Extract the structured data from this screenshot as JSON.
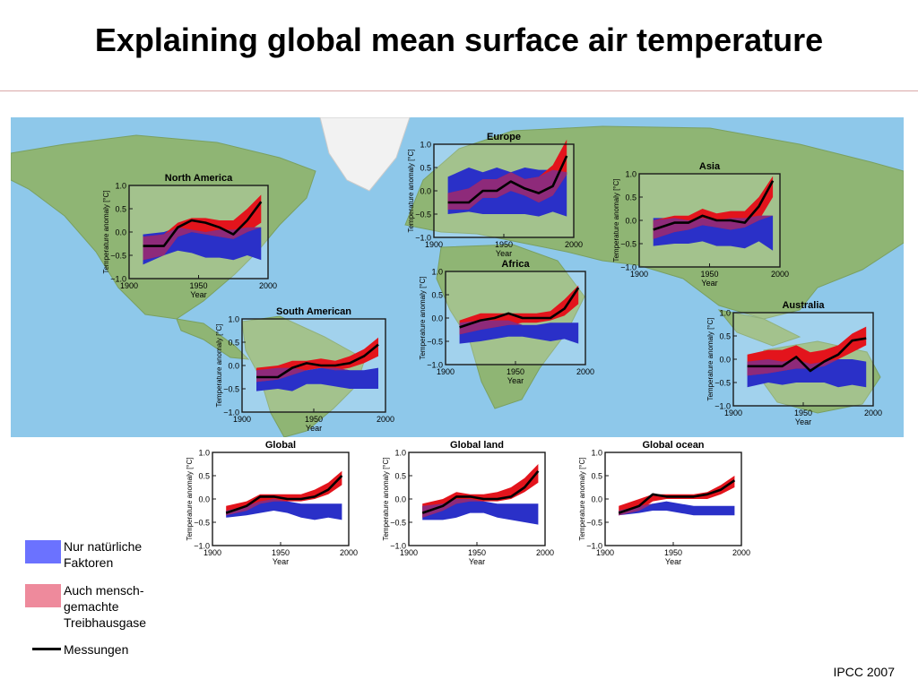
{
  "slide": {
    "title": "Explaining global mean surface air temperature",
    "source": "IPCC 2007"
  },
  "legend": {
    "natural": {
      "line1": "Nur natürliche",
      "line2": "Faktoren",
      "color": "#6b72ff"
    },
    "anthro": {
      "line1": "Auch mensch-",
      "line2": "gemachte",
      "line3": "Treibhausgase",
      "color": "#ee8a9c"
    },
    "observed": {
      "label": "Messungen",
      "color": "#000000"
    }
  },
  "colors": {
    "natural_band": "#2a30c8",
    "anthro_band": "#e3141c",
    "overlap": "#8e2a7a",
    "ocean": "#8ec8ea",
    "land": "#8fb574",
    "ice": "#f2f2f2"
  },
  "chart_data": [
    {
      "type": "area",
      "title": "North America",
      "ylabel": "Temperature anomaly [°C]",
      "xlabel": "Year",
      "xlim": [
        1900,
        2000
      ],
      "ylim": [
        -1.0,
        1.0
      ],
      "xticks": [
        "1900",
        "1950",
        "2000"
      ],
      "yticks": [
        "−1.0",
        "−0.5",
        "0.0",
        "0.5",
        "1.0"
      ],
      "x": [
        1910,
        1925,
        1935,
        1945,
        1955,
        1965,
        1975,
        1985,
        1995
      ],
      "series": [
        {
          "values": [
            -0.3,
            -0.3,
            0.1,
            0.25,
            0.2,
            0.1,
            -0.05,
            0.25,
            0.65
          ]
        },
        {
          "lower": [
            -0.7,
            -0.5,
            -0.4,
            -0.45,
            -0.55,
            -0.55,
            -0.6,
            -0.5,
            -0.6
          ],
          "upper": [
            -0.05,
            0.0,
            0.1,
            0.05,
            0.0,
            0.05,
            0.05,
            0.1,
            0.1
          ]
        },
        {
          "lower": [
            -0.6,
            -0.5,
            -0.1,
            0.0,
            -0.05,
            -0.1,
            -0.15,
            0.0,
            0.2
          ],
          "upper": [
            -0.1,
            -0.05,
            0.2,
            0.3,
            0.3,
            0.25,
            0.25,
            0.5,
            0.8
          ]
        }
      ]
    },
    {
      "type": "area",
      "title": "Europe",
      "ylabel": "Temperature anomaly [°C]",
      "xlabel": "Year",
      "xlim": [
        1900,
        2000
      ],
      "ylim": [
        -1.0,
        1.0
      ],
      "xticks": [
        "1900",
        "1950",
        "2000"
      ],
      "yticks": [
        "−1.0",
        "−0.5",
        "0.0",
        "0.5",
        "1.0"
      ],
      "x": [
        1910,
        1925,
        1935,
        1945,
        1955,
        1965,
        1975,
        1985,
        1995
      ],
      "series": [
        {
          "values": [
            -0.25,
            -0.25,
            0.0,
            0.0,
            0.2,
            0.05,
            -0.05,
            0.1,
            0.75
          ]
        },
        {
          "lower": [
            -0.5,
            -0.45,
            -0.5,
            -0.5,
            -0.5,
            -0.5,
            -0.55,
            -0.45,
            -0.55
          ],
          "upper": [
            0.3,
            0.5,
            0.4,
            0.5,
            0.4,
            0.5,
            0.45,
            0.45,
            0.4
          ]
        },
        {
          "lower": [
            -0.4,
            -0.4,
            -0.15,
            -0.15,
            0.0,
            -0.1,
            -0.25,
            -0.1,
            0.35
          ],
          "upper": [
            -0.05,
            0.05,
            0.25,
            0.25,
            0.4,
            0.25,
            0.3,
            0.55,
            1.1
          ]
        }
      ]
    },
    {
      "type": "area",
      "title": "Asia",
      "ylabel": "Temperature anomaly [°C]",
      "xlabel": "Year",
      "xlim": [
        1900,
        2000
      ],
      "ylim": [
        -1.0,
        1.0
      ],
      "xticks": [
        "1900",
        "1950",
        "2000"
      ],
      "yticks": [
        "−1.0",
        "−0.5",
        "0.0",
        "0.5",
        "1.0"
      ],
      "x": [
        1910,
        1925,
        1935,
        1945,
        1955,
        1965,
        1975,
        1985,
        1995
      ],
      "series": [
        {
          "values": [
            -0.2,
            -0.05,
            -0.05,
            0.1,
            0.0,
            0.0,
            -0.05,
            0.3,
            0.85
          ]
        },
        {
          "lower": [
            -0.55,
            -0.5,
            -0.5,
            -0.45,
            -0.55,
            -0.55,
            -0.6,
            -0.45,
            -0.65
          ],
          "upper": [
            0.05,
            0.05,
            0.0,
            0.05,
            0.0,
            0.05,
            0.05,
            0.1,
            0.1
          ]
        },
        {
          "lower": [
            -0.4,
            -0.25,
            -0.2,
            -0.1,
            -0.15,
            -0.2,
            -0.15,
            0.0,
            0.5
          ],
          "upper": [
            0.0,
            0.1,
            0.1,
            0.25,
            0.15,
            0.2,
            0.2,
            0.5,
            0.95
          ]
        }
      ]
    },
    {
      "type": "area",
      "title": "Africa",
      "ylabel": "Temperature anomaly [°C]",
      "xlabel": "Year",
      "xlim": [
        1900,
        2000
      ],
      "ylim": [
        -1.0,
        1.0
      ],
      "xticks": [
        "1900",
        "1950",
        "2000"
      ],
      "yticks": [
        "−1.0",
        "−0.5",
        "0.0",
        "0.5",
        "1.0"
      ],
      "x": [
        1910,
        1925,
        1935,
        1945,
        1955,
        1965,
        1975,
        1985,
        1995
      ],
      "series": [
        {
          "values": [
            -0.2,
            -0.05,
            0.0,
            0.1,
            0.0,
            0.0,
            0.0,
            0.2,
            0.65
          ]
        },
        {
          "lower": [
            -0.55,
            -0.5,
            -0.45,
            -0.4,
            -0.4,
            -0.45,
            -0.5,
            -0.45,
            -0.55
          ],
          "upper": [
            -0.1,
            -0.05,
            -0.05,
            -0.05,
            -0.15,
            -0.15,
            -0.1,
            -0.1,
            -0.1
          ]
        },
        {
          "lower": [
            -0.35,
            -0.25,
            -0.2,
            -0.15,
            -0.1,
            -0.1,
            -0.05,
            0.05,
            0.3
          ],
          "upper": [
            -0.05,
            0.1,
            0.1,
            0.1,
            0.1,
            0.1,
            0.15,
            0.4,
            0.7
          ]
        }
      ]
    },
    {
      "type": "area",
      "title": "South American",
      "ylabel": "Temperature anomaly [°C]",
      "xlabel": "Year",
      "xlim": [
        1900,
        2000
      ],
      "ylim": [
        -1.0,
        1.0
      ],
      "xticks": [
        "1900",
        "1950",
        "2000"
      ],
      "yticks": [
        "−1.0",
        "−0.5",
        "0.0",
        "0.5",
        "1.0"
      ],
      "x": [
        1910,
        1925,
        1935,
        1945,
        1955,
        1965,
        1975,
        1985,
        1995
      ],
      "series": [
        {
          "values": [
            -0.25,
            -0.25,
            -0.05,
            0.05,
            0.0,
            0.0,
            0.05,
            0.2,
            0.45
          ]
        },
        {
          "lower": [
            -0.55,
            -0.5,
            -0.55,
            -0.4,
            -0.4,
            -0.45,
            -0.5,
            -0.5,
            -0.5
          ],
          "upper": [
            -0.1,
            -0.05,
            -0.05,
            -0.1,
            -0.05,
            -0.05,
            -0.1,
            -0.1,
            -0.05
          ]
        },
        {
          "lower": [
            -0.35,
            -0.3,
            -0.2,
            -0.1,
            -0.05,
            -0.1,
            -0.05,
            0.05,
            0.2
          ],
          "upper": [
            -0.05,
            0.0,
            0.1,
            0.1,
            0.15,
            0.1,
            0.2,
            0.35,
            0.6
          ]
        }
      ]
    },
    {
      "type": "area",
      "title": "Australia",
      "ylabel": "Temperature anomaly [°C]",
      "xlabel": "Year",
      "xlim": [
        1900,
        2000
      ],
      "ylim": [
        -1.0,
        1.0
      ],
      "xticks": [
        "1900",
        "1950",
        "2000"
      ],
      "yticks": [
        "−1.0",
        "−0.5",
        "0.0",
        "0.5",
        "1.0"
      ],
      "x": [
        1910,
        1925,
        1935,
        1945,
        1955,
        1965,
        1975,
        1985,
        1995
      ],
      "series": [
        {
          "values": [
            -0.15,
            -0.15,
            -0.15,
            0.05,
            -0.25,
            -0.05,
            0.1,
            0.4,
            0.45
          ]
        },
        {
          "lower": [
            -0.6,
            -0.5,
            -0.55,
            -0.5,
            -0.5,
            -0.5,
            -0.6,
            -0.55,
            -0.6
          ],
          "upper": [
            -0.05,
            0.0,
            -0.05,
            0.0,
            -0.1,
            -0.05,
            0.0,
            0.0,
            -0.05
          ]
        },
        {
          "lower": [
            -0.35,
            -0.3,
            -0.25,
            -0.2,
            -0.2,
            -0.15,
            0.0,
            0.15,
            0.3
          ],
          "upper": [
            0.1,
            0.2,
            0.2,
            0.3,
            0.15,
            0.2,
            0.3,
            0.55,
            0.7
          ]
        }
      ]
    },
    {
      "type": "area",
      "title": "Global",
      "ylabel": "Temperature anomaly [°C]",
      "xlabel": "Year",
      "xlim": [
        1900,
        2000
      ],
      "ylim": [
        -1.0,
        1.0
      ],
      "xticks": [
        "1900",
        "1950",
        "2000"
      ],
      "yticks": [
        "−1.0",
        "−0.5",
        "0.0",
        "0.5",
        "1.0"
      ],
      "x": [
        1910,
        1925,
        1935,
        1945,
        1955,
        1965,
        1975,
        1985,
        1995
      ],
      "series": [
        {
          "values": [
            -0.3,
            -0.15,
            0.05,
            0.05,
            0.0,
            0.0,
            0.05,
            0.2,
            0.5
          ]
        },
        {
          "lower": [
            -0.4,
            -0.35,
            -0.3,
            -0.25,
            -0.3,
            -0.4,
            -0.45,
            -0.4,
            -0.45
          ],
          "upper": [
            -0.25,
            -0.15,
            -0.05,
            0.0,
            -0.05,
            -0.1,
            -0.1,
            -0.1,
            -0.1
          ]
        },
        {
          "lower": [
            -0.35,
            -0.25,
            -0.1,
            -0.05,
            -0.05,
            -0.05,
            0.0,
            0.1,
            0.3
          ],
          "upper": [
            -0.15,
            -0.05,
            0.1,
            0.1,
            0.1,
            0.1,
            0.2,
            0.35,
            0.6
          ]
        }
      ]
    },
    {
      "type": "area",
      "title": "Global land",
      "ylabel": "Temperature anomaly [°C]",
      "xlabel": "Year",
      "xlim": [
        1900,
        2000
      ],
      "ylim": [
        -1.0,
        1.0
      ],
      "xticks": [
        "1900",
        "1950",
        "2000"
      ],
      "yticks": [
        "−1.0",
        "−0.5",
        "0.0",
        "0.5",
        "1.0"
      ],
      "x": [
        1910,
        1925,
        1935,
        1945,
        1955,
        1965,
        1975,
        1985,
        1995
      ],
      "series": [
        {
          "values": [
            -0.3,
            -0.15,
            0.05,
            0.05,
            0.0,
            0.0,
            0.05,
            0.25,
            0.6
          ]
        },
        {
          "lower": [
            -0.45,
            -0.45,
            -0.4,
            -0.3,
            -0.3,
            -0.4,
            -0.45,
            -0.5,
            -0.55
          ],
          "upper": [
            -0.15,
            -0.1,
            0.0,
            0.0,
            -0.05,
            -0.1,
            -0.1,
            -0.1,
            -0.1
          ]
        },
        {
          "lower": [
            -0.4,
            -0.25,
            -0.1,
            -0.05,
            -0.05,
            -0.05,
            0.0,
            0.15,
            0.35
          ],
          "upper": [
            -0.1,
            0.0,
            0.15,
            0.1,
            0.1,
            0.15,
            0.25,
            0.45,
            0.75
          ]
        }
      ]
    },
    {
      "type": "area",
      "title": "Global ocean",
      "ylabel": "Temperature anomaly [°C]",
      "xlabel": "Year",
      "xlim": [
        1900,
        2000
      ],
      "ylim": [
        -1.0,
        1.0
      ],
      "xticks": [
        "1900",
        "1950",
        "2000"
      ],
      "yticks": [
        "−1.0",
        "−0.5",
        "0.0",
        "0.5",
        "1.0"
      ],
      "x": [
        1910,
        1925,
        1935,
        1945,
        1955,
        1965,
        1975,
        1985,
        1995
      ],
      "series": [
        {
          "values": [
            -0.3,
            -0.15,
            0.1,
            0.05,
            0.05,
            0.05,
            0.1,
            0.2,
            0.4
          ]
        },
        {
          "lower": [
            -0.35,
            -0.3,
            -0.25,
            -0.25,
            -0.3,
            -0.35,
            -0.35,
            -0.35,
            -0.35
          ],
          "upper": [
            -0.25,
            -0.15,
            -0.1,
            -0.05,
            -0.1,
            -0.15,
            -0.15,
            -0.15,
            -0.15
          ]
        },
        {
          "lower": [
            -0.35,
            -0.25,
            -0.05,
            0.0,
            0.0,
            0.0,
            0.0,
            0.1,
            0.25
          ],
          "upper": [
            -0.15,
            0.0,
            0.1,
            0.1,
            0.1,
            0.1,
            0.15,
            0.3,
            0.5
          ]
        }
      ]
    }
  ]
}
